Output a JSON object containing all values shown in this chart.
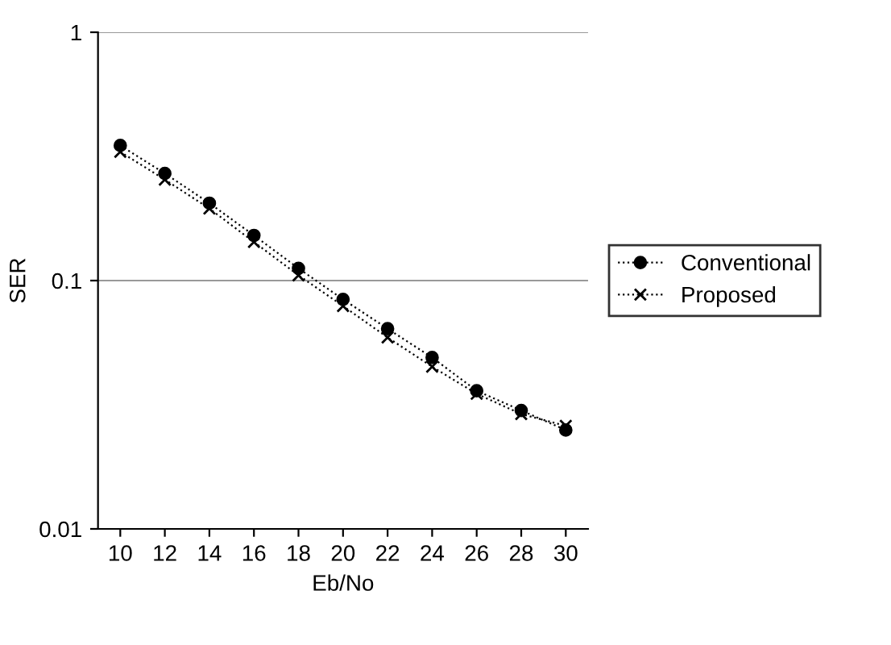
{
  "chart_data": {
    "type": "line",
    "xlabel": "Eb/No",
    "ylabel": "SER",
    "x": [
      10,
      12,
      14,
      16,
      18,
      20,
      22,
      24,
      26,
      28,
      30
    ],
    "series": [
      {
        "name": "Conventional",
        "color": "#000000",
        "marker": "circle",
        "values": [
          0.35,
          0.27,
          0.205,
          0.152,
          0.112,
          0.084,
          0.064,
          0.049,
          0.036,
          0.03,
          0.025
        ]
      },
      {
        "name": "Proposed",
        "color": "#000000",
        "marker": "cross",
        "values": [
          0.33,
          0.255,
          0.195,
          0.143,
          0.105,
          0.079,
          0.059,
          0.045,
          0.035,
          0.029,
          0.026
        ]
      }
    ],
    "log": "y",
    "ylim": [
      0.01,
      1
    ],
    "yticks": [
      0.01,
      0.1,
      1
    ],
    "xlim": [
      9,
      31
    ],
    "xticks": [
      10,
      12,
      14,
      16,
      18,
      20,
      22,
      24,
      26,
      28,
      30
    ],
    "grid": "y",
    "legend": "right",
    "line_style": "dotted"
  }
}
